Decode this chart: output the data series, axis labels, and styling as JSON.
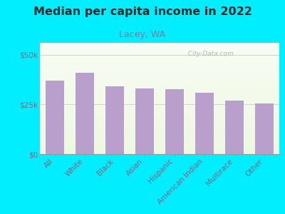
{
  "title": "Median per capita income in 2022",
  "subtitle": "Lacey, WA",
  "categories": [
    "All",
    "White",
    "Black",
    "Asian",
    "Hispanic",
    "American Indian",
    "Multirace",
    "Other"
  ],
  "values": [
    37000,
    41000,
    34000,
    33000,
    32500,
    31000,
    27000,
    25500
  ],
  "bar_color": "#b9a0cc",
  "background_outer": "#00eeff",
  "title_color": "#2a2a2a",
  "subtitle_color": "#887799",
  "tick_label_color": "#7a6880",
  "ytick_labels": [
    "$0",
    "$25k",
    "$50k"
  ],
  "ytick_values": [
    0,
    25000,
    50000
  ],
  "ylim": [
    0,
    56000
  ],
  "watermark": "  City-Data.com",
  "title_fontsize": 11.5,
  "subtitle_fontsize": 9,
  "tick_fontsize": 7.5
}
